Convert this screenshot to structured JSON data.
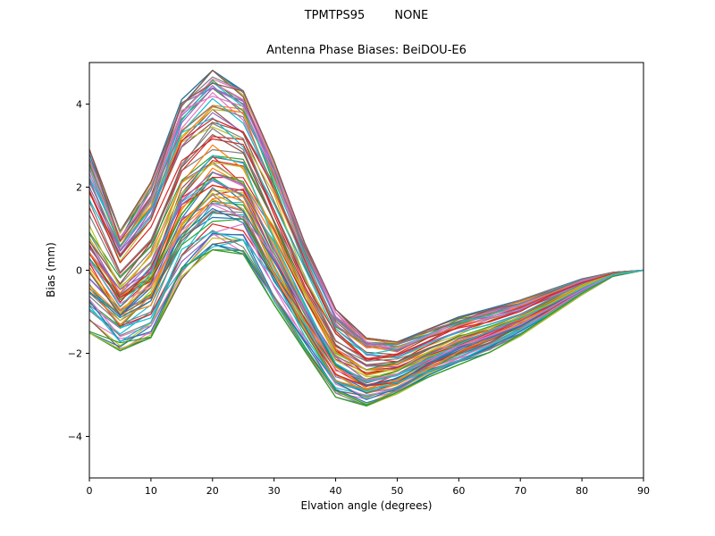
{
  "figure": {
    "suptitle": "TPMTPS95        NONE",
    "title": "Antenna Phase Biases: BeiDOU-E6",
    "xlabel": "Elvation angle (degrees)",
    "ylabel": "Bias (mm)",
    "background": "#ffffff",
    "axes_edge_color": "#000000"
  },
  "chart_data": {
    "type": "line",
    "suptitle": "TPMTPS95        NONE",
    "title": "Antenna Phase Biases: BeiDOU-E6",
    "xlabel": "Elvation angle (degrees)",
    "ylabel": "Bias (mm)",
    "xlim": [
      0,
      90
    ],
    "ylim": [
      -5,
      5
    ],
    "xticks": [
      0,
      10,
      20,
      30,
      40,
      50,
      60,
      70,
      80,
      90
    ],
    "yticks": [
      -4,
      -2,
      0,
      2,
      4
    ],
    "grid": false,
    "legend": "none",
    "x": [
      0,
      5,
      10,
      15,
      20,
      25,
      30,
      35,
      40,
      45,
      50,
      55,
      60,
      65,
      70,
      75,
      80,
      85,
      90
    ],
    "ensemble": {
      "note": "Dense bundle of overlapping phase-bias curves (one per antenna/station). All curves dip near 5 deg, peak near 20 deg, trough near 40-50 deg, and converge to 0 at 90 deg. Envelope values in mm read from the plot.",
      "count": 90,
      "upper_envelope": [
        3.0,
        1.0,
        2.2,
        4.2,
        4.9,
        4.4,
        2.7,
        0.7,
        -0.9,
        -1.6,
        -1.7,
        -1.4,
        -1.1,
        -0.9,
        -0.7,
        -0.45,
        -0.2,
        -0.05,
        0.0
      ],
      "lower_envelope": [
        -1.6,
        -2.0,
        -1.7,
        -0.3,
        0.4,
        0.3,
        -0.9,
        -2.0,
        -3.1,
        -3.3,
        -3.0,
        -2.6,
        -2.3,
        -2.0,
        -1.6,
        -1.1,
        -0.6,
        -0.15,
        0.0
      ],
      "mean": [
        0.7,
        -0.5,
        0.25,
        1.95,
        2.65,
        2.35,
        0.9,
        -0.65,
        -2.0,
        -2.45,
        -2.35,
        -2.0,
        -1.7,
        -1.45,
        -1.15,
        -0.78,
        -0.4,
        -0.1,
        0.0
      ]
    },
    "palette": [
      "#1f77b4",
      "#ff7f0e",
      "#2ca02c",
      "#d62728",
      "#9467bd",
      "#8c564b",
      "#e377c2",
      "#7f7f7f",
      "#bcbd22",
      "#17becf"
    ],
    "line_width": 1.2
  }
}
